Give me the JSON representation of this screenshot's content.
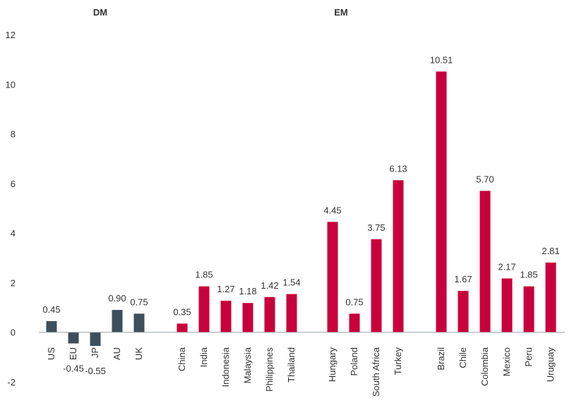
{
  "chart_data": {
    "type": "bar",
    "title": "",
    "xlabel": "",
    "ylabel": "",
    "ylim": [
      -2,
      12
    ],
    "yticks": [
      12,
      10,
      8,
      6,
      4,
      2,
      0,
      -2
    ],
    "grid": false,
    "legend": "none",
    "groups": [
      {
        "label": "DM",
        "color": "#3d4f5c",
        "categories": [
          "US",
          "EU",
          "JP",
          "AU",
          "UK"
        ],
        "values": [
          0.45,
          -0.45,
          -0.55,
          0.9,
          0.75
        ],
        "labels": [
          "0.45",
          "-0.45",
          "-0.55",
          "0.90",
          "0.75"
        ]
      },
      {
        "label": "",
        "color": "#c8003c",
        "categories": [
          "China",
          "India",
          "Indonesia",
          "Malaysia",
          "Philippines",
          "Thailand"
        ],
        "values": [
          0.35,
          1.85,
          1.27,
          1.18,
          1.42,
          1.54
        ],
        "labels": [
          "0.35",
          "1.85",
          "1.27",
          "1.18",
          "1.42",
          "1.54"
        ]
      },
      {
        "label": "EM",
        "color": "#c8003c",
        "categories": [
          "Hungary",
          "Poland",
          "South Africa",
          "Turkey"
        ],
        "values": [
          4.45,
          0.75,
          3.75,
          6.13
        ],
        "labels": [
          "4.45",
          "0.75",
          "3.75",
          "6.13"
        ]
      },
      {
        "label": "",
        "color": "#c8003c",
        "categories": [
          "Brazil",
          "Chile",
          "Colombia",
          "Mexico",
          "Peru",
          "Uruguay"
        ],
        "values": [
          10.51,
          1.67,
          5.7,
          2.17,
          1.85,
          2.81
        ],
        "labels": [
          "10.51",
          "1.67",
          "5.70",
          "2.17",
          "1.85",
          "2.81"
        ]
      }
    ]
  }
}
